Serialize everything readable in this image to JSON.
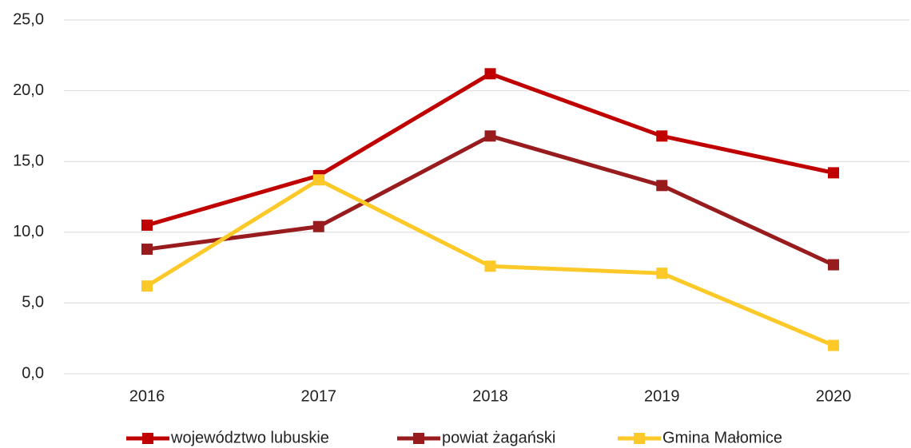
{
  "chart_data": {
    "type": "line",
    "categories": [
      "2016",
      "2017",
      "2018",
      "2019",
      "2020"
    ],
    "series": [
      {
        "name": "województwo lubuskie",
        "color": "#c00000",
        "values": [
          10.5,
          14.0,
          21.2,
          16.8,
          14.2
        ]
      },
      {
        "name": "powiat żagański",
        "color": "#981b1e",
        "values": [
          8.8,
          10.4,
          16.8,
          13.3,
          7.7
        ]
      },
      {
        "name": "Gmina Małomice",
        "color": "#fcc928",
        "values": [
          6.2,
          13.7,
          7.6,
          7.1,
          2.0
        ]
      }
    ],
    "ylim": [
      0,
      25
    ],
    "yticks": [
      {
        "value": 0,
        "label": "0,0"
      },
      {
        "value": 5,
        "label": "5,0"
      },
      {
        "value": 10,
        "label": "10,0"
      },
      {
        "value": 15,
        "label": "15,0"
      },
      {
        "value": 20,
        "label": "20,0"
      },
      {
        "value": 25,
        "label": "25,0"
      }
    ],
    "grid": true,
    "legend": "bottom"
  }
}
